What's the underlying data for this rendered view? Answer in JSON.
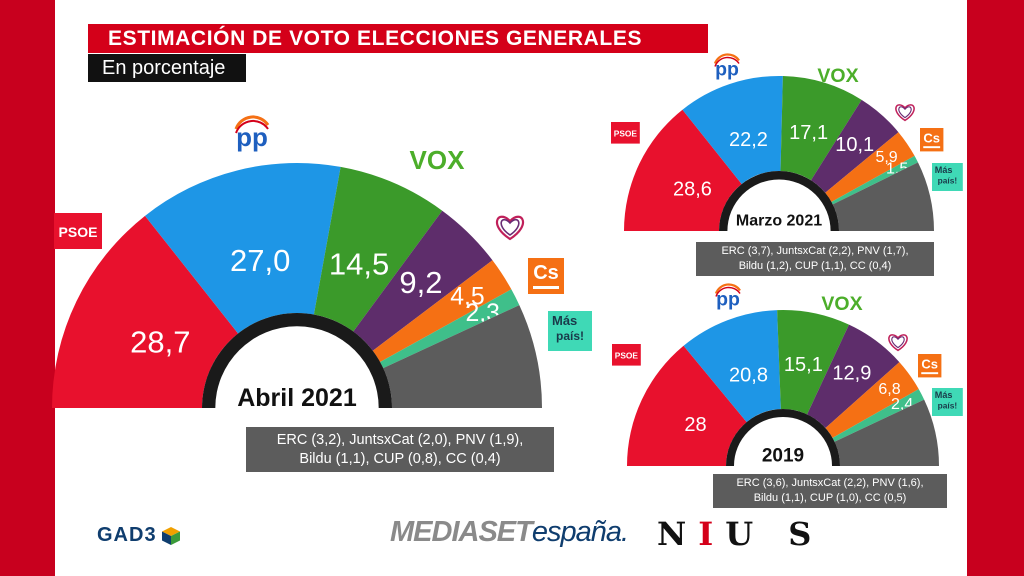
{
  "header": {
    "title": "ESTIMACIÓN DE VOTO ELECCIONES GENERALES",
    "subtitle": "En porcentaje"
  },
  "chart_data": [
    {
      "type": "pie",
      "subtype": "semicircle",
      "title": "Abril 2021",
      "unit": "%",
      "categories": [
        "PSOE",
        "PP",
        "Vox",
        "Más País / Podemos (heart logo)",
        "Cs",
        "Más País",
        "Otros"
      ],
      "values": [
        28.7,
        27.0,
        14.5,
        9.2,
        4.5,
        2.3,
        13.8
      ],
      "labels": [
        "28,7",
        "27,0",
        "14,5",
        "9,2",
        "4,5",
        "2,3",
        ""
      ],
      "note_lines": [
        "ERC (3,2), JuntsxCat (2,0), PNV (1,9),",
        "Bildu (1,1), CUP (0,8), CC (0,4)"
      ]
    },
    {
      "type": "pie",
      "subtype": "semicircle",
      "title": "Marzo 2021",
      "unit": "%",
      "categories": [
        "PSOE",
        "PP",
        "Vox",
        "Unidas Podemos",
        "Cs",
        "Más País",
        "Otros"
      ],
      "values": [
        28.6,
        22.2,
        17.1,
        10.1,
        5.9,
        1.5,
        14.6
      ],
      "labels": [
        "28,6",
        "22,2",
        "17,1",
        "10,1",
        "5,9",
        "1,5",
        ""
      ],
      "note_lines": [
        "ERC (3,7), JuntsxCat (2,2), PNV (1,7),",
        "Bildu (1,2), CUP (1,1), CC (0,4)"
      ]
    },
    {
      "type": "pie",
      "subtype": "semicircle",
      "title": "2019",
      "unit": "%",
      "categories": [
        "PSOE",
        "PP",
        "Vox",
        "Unidas Podemos",
        "Cs",
        "Más País",
        "Otros"
      ],
      "values": [
        28.0,
        20.8,
        15.1,
        12.9,
        6.8,
        2.4,
        14.0
      ],
      "labels": [
        "28",
        "20,8",
        "15,1",
        "12,9",
        "6,8",
        "2,4",
        ""
      ],
      "note_lines": [
        "ERC (3,6), JuntsxCat (2,2), PNV (1,6),",
        "Bildu (1,1), CUP (1,0), CC (0,5)"
      ]
    }
  ],
  "legend_logos": {
    "psoe": "PSOE",
    "pp": "pp",
    "vox": "VOX",
    "cs": "Cs",
    "mas_pais": [
      "Más",
      "país!"
    ],
    "heart": "heart-icon"
  },
  "colors": {
    "psoe": "#e8112d",
    "pp": "#1e96e6",
    "vox": "#3b9a2a",
    "podemos": "#5e2d6b",
    "cs": "#f57014",
    "mas_pais": "#3fbf8a",
    "otros": "#5c5c5c"
  },
  "footer": {
    "gad3": "GAD3",
    "mediaset_1": "MEDIASET",
    "mediaset_2": "españa.",
    "nius_1": "N",
    "nius_2": "I",
    "nius_3": "U S"
  }
}
